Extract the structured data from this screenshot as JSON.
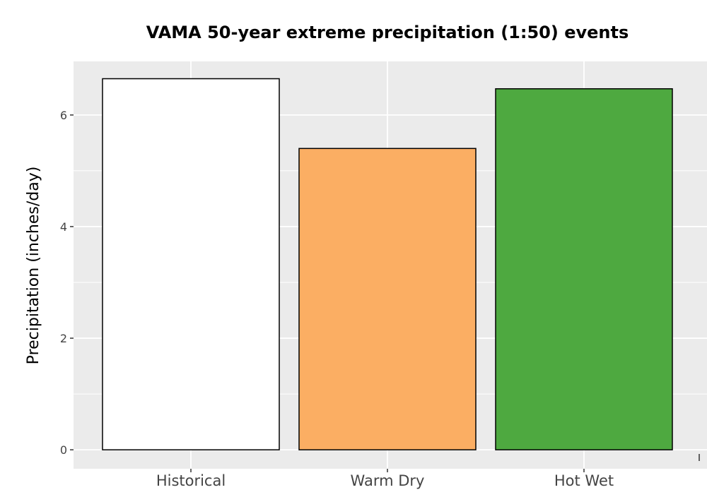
{
  "chart_data": {
    "type": "bar",
    "title": "VAMA 50-year extreme precipitation (1:50) events",
    "xlabel": "",
    "ylabel": "Precipitation (inches/day)",
    "categories": [
      "Historical",
      "Warm Dry",
      "Hot Wet"
    ],
    "values": [
      6.65,
      5.4,
      6.47
    ],
    "bar_colors": [
      "#ffffff",
      "#fbae63",
      "#4ea940"
    ],
    "bar_edge_color": "#000000",
    "ylim": [
      -0.34,
      6.96
    ],
    "yticks": [
      0,
      2,
      4,
      6
    ],
    "ytick_labels": [
      "0",
      "2",
      "4",
      "6"
    ],
    "grid": true,
    "panel_background": "#ebebeb",
    "gridline_color": "#ffffff",
    "legend": "none"
  }
}
